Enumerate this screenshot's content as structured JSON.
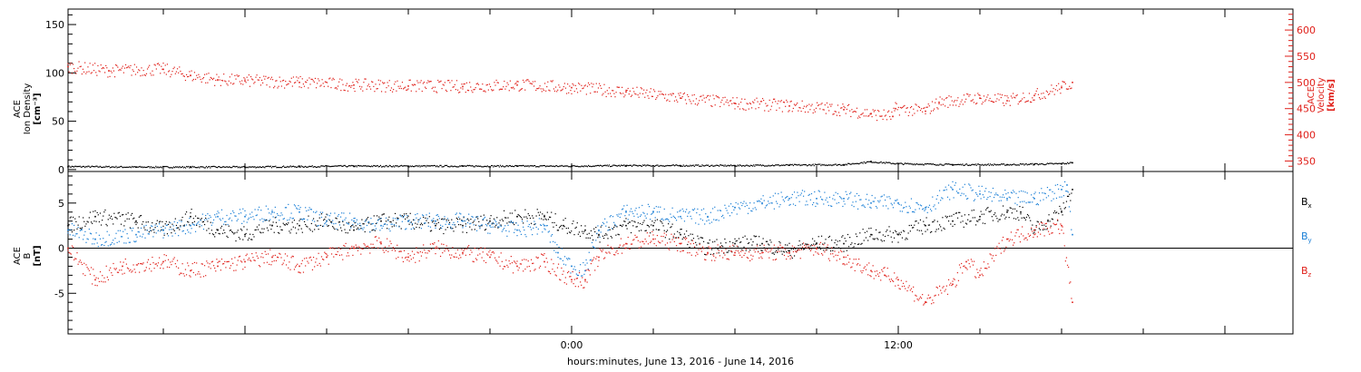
{
  "figure": {
    "xlabel": "hours:minutes, June 13, 2016 - June 14, 2016"
  },
  "colors": {
    "black": "#000000",
    "red": "#e0201a",
    "blue": "#1a7fd6"
  },
  "chart_data": [
    {
      "type": "scatter",
      "panel": "top",
      "xrange_hours": [
        -18.5,
        26.5
      ],
      "xtick_labels": [
        {
          "hour": 0,
          "label": "0:00"
        },
        {
          "hour": 12,
          "label": "12:00"
        }
      ],
      "ylabel_left": [
        "ACE",
        "Ion Density",
        "[cm⁻³]"
      ],
      "ylim_left": [
        -2,
        166
      ],
      "yticks_left": [
        0,
        50,
        100,
        150
      ],
      "ylabel_right": [
        "ACE",
        "Velocity",
        "[km/s]"
      ],
      "ylim_right": [
        330,
        640
      ],
      "yticks_right": [
        350,
        400,
        450,
        500,
        550,
        600
      ],
      "series": [
        {
          "name": "",
          "axis": "left",
          "color": "#000000",
          "points": [
            [
              -18.5,
              3
            ],
            [
              -16,
              2.5
            ],
            [
              -14,
              2.5
            ],
            [
              -12,
              2.5
            ],
            [
              -10,
              3
            ],
            [
              -8,
              3.5
            ],
            [
              -6,
              3.5
            ],
            [
              -4,
              3.5
            ],
            [
              -2,
              3.5
            ],
            [
              0,
              3.5
            ],
            [
              2,
              4
            ],
            [
              4,
              4
            ],
            [
              6,
              4
            ],
            [
              8,
              4.5
            ],
            [
              10,
              5
            ],
            [
              11,
              8
            ],
            [
              12,
              6
            ],
            [
              14,
              5
            ],
            [
              16,
              5
            ],
            [
              17,
              5.5
            ],
            [
              18,
              6
            ],
            [
              18.4,
              7
            ]
          ]
        },
        {
          "name": "",
          "axis": "right",
          "color": "#e0201a",
          "points": [
            [
              -18.5,
              530
            ],
            [
              -17,
              522
            ],
            [
              -15,
              525
            ],
            [
              -14,
              513
            ],
            [
              -13,
              505
            ],
            [
              -12,
              503
            ],
            [
              -10,
              500
            ],
            [
              -8,
              495
            ],
            [
              -6,
              493
            ],
            [
              -4,
              492
            ],
            [
              -2,
              495
            ],
            [
              0,
              490
            ],
            [
              2,
              482
            ],
            [
              4,
              470
            ],
            [
              6,
              460
            ],
            [
              8,
              455
            ],
            [
              10,
              448
            ],
            [
              11,
              440
            ],
            [
              11.8,
              435
            ],
            [
              11.9,
              450
            ],
            [
              13,
              445
            ],
            [
              13.5,
              462
            ],
            [
              15,
              470
            ],
            [
              16,
              465
            ],
            [
              17,
              475
            ],
            [
              18,
              490
            ],
            [
              18.4,
              500
            ]
          ]
        }
      ]
    },
    {
      "type": "scatter",
      "panel": "bottom",
      "xrange_hours": [
        -18.5,
        26.5
      ],
      "ylabel_left": [
        "ACE",
        "B",
        "[nT]"
      ],
      "ylim_left": [
        -9.5,
        8.5
      ],
      "yticks_left": [
        -5,
        0,
        5
      ],
      "zero_line": true,
      "legend": [
        "Bx",
        "By",
        "Bz"
      ],
      "legend_position": "right",
      "series": [
        {
          "name": "Bx",
          "color": "#000000",
          "points": [
            [
              -18.5,
              2.5
            ],
            [
              -17.5,
              3.5
            ],
            [
              -16,
              3
            ],
            [
              -15,
              2
            ],
            [
              -14,
              3.5
            ],
            [
              -13,
              2
            ],
            [
              -12,
              1.5
            ],
            [
              -11,
              2.5
            ],
            [
              -10,
              2.5
            ],
            [
              -9,
              3
            ],
            [
              -8,
              2
            ],
            [
              -7,
              3
            ],
            [
              -6,
              3
            ],
            [
              -5,
              2.5
            ],
            [
              -4,
              2.5
            ],
            [
              -3,
              3
            ],
            [
              -2,
              3.5
            ],
            [
              -1,
              3.5
            ],
            [
              -0.3,
              2.5
            ],
            [
              0.5,
              2
            ],
            [
              1,
              1.5
            ],
            [
              2,
              2.5
            ],
            [
              3,
              2.5
            ],
            [
              4,
              1.5
            ],
            [
              5,
              0
            ],
            [
              6,
              0.5
            ],
            [
              7,
              0.5
            ],
            [
              8,
              -0.3
            ],
            [
              9,
              0.5
            ],
            [
              10,
              0.5
            ],
            [
              11,
              1.5
            ],
            [
              12,
              1.5
            ],
            [
              13,
              2.5
            ],
            [
              14,
              3
            ],
            [
              15,
              3.5
            ],
            [
              16,
              4
            ],
            [
              16.5,
              4
            ],
            [
              17,
              2
            ],
            [
              17.5,
              3
            ],
            [
              18,
              4
            ],
            [
              18.4,
              6.5
            ]
          ]
        },
        {
          "name": "By",
          "color": "#1a7fd6",
          "points": [
            [
              -18.5,
              2
            ],
            [
              -17.5,
              1
            ],
            [
              -16,
              1.5
            ],
            [
              -15,
              2
            ],
            [
              -14,
              2.5
            ],
            [
              -13,
              3.5
            ],
            [
              -12,
              3.5
            ],
            [
              -11,
              4
            ],
            [
              -10,
              4
            ],
            [
              -9,
              3
            ],
            [
              -8,
              3
            ],
            [
              -7,
              2.5
            ],
            [
              -6,
              3
            ],
            [
              -5,
              3
            ],
            [
              -4,
              3
            ],
            [
              -3,
              2.5
            ],
            [
              -2,
              2
            ],
            [
              -1,
              2.5
            ],
            [
              -0.5,
              -0.5
            ],
            [
              0,
              -2
            ],
            [
              0.5,
              -2.5
            ],
            [
              1,
              2
            ],
            [
              2,
              4
            ],
            [
              3,
              4
            ],
            [
              4,
              3.5
            ],
            [
              5,
              3.5
            ],
            [
              6,
              4.5
            ],
            [
              7,
              5
            ],
            [
              8,
              5.5
            ],
            [
              9,
              5.5
            ],
            [
              10,
              5.5
            ],
            [
              11,
              5
            ],
            [
              12,
              5
            ],
            [
              13,
              4.5
            ],
            [
              14,
              6.5
            ],
            [
              15,
              6
            ],
            [
              16,
              5.5
            ],
            [
              17,
              5.5
            ],
            [
              18,
              6.5
            ],
            [
              18.2,
              7
            ],
            [
              18.4,
              1.5
            ]
          ]
        },
        {
          "name": "Bz",
          "color": "#e0201a",
          "points": [
            [
              -18.5,
              0
            ],
            [
              -17.5,
              -3.5
            ],
            [
              -16.5,
              -2
            ],
            [
              -15,
              -1.5
            ],
            [
              -14,
              -2.5
            ],
            [
              -13,
              -2
            ],
            [
              -12,
              -1.5
            ],
            [
              -11,
              -1
            ],
            [
              -10,
              -2
            ],
            [
              -9,
              -1
            ],
            [
              -8,
              0
            ],
            [
              -7,
              0.5
            ],
            [
              -6,
              -1
            ],
            [
              -5,
              0
            ],
            [
              -4,
              -0.5
            ],
            [
              -3,
              -1
            ],
            [
              -2,
              -2
            ],
            [
              -1,
              -1.5
            ],
            [
              0,
              -3.5
            ],
            [
              0.5,
              -3.5
            ],
            [
              1,
              -1
            ],
            [
              2,
              0.5
            ],
            [
              3,
              1
            ],
            [
              4,
              0.5
            ],
            [
              5,
              -0.5
            ],
            [
              6,
              -0.5
            ],
            [
              7,
              -0.5
            ],
            [
              8,
              -0.5
            ],
            [
              9,
              0
            ],
            [
              10,
              -1
            ],
            [
              11,
              -2.5
            ],
            [
              11.5,
              -3
            ],
            [
              12,
              -3.5
            ],
            [
              13,
              -6
            ],
            [
              14,
              -4
            ],
            [
              14.5,
              -1.5
            ],
            [
              15,
              -3
            ],
            [
              16,
              1
            ],
            [
              17,
              2
            ],
            [
              18,
              2.5
            ],
            [
              18.4,
              -6
            ]
          ]
        }
      ]
    }
  ]
}
